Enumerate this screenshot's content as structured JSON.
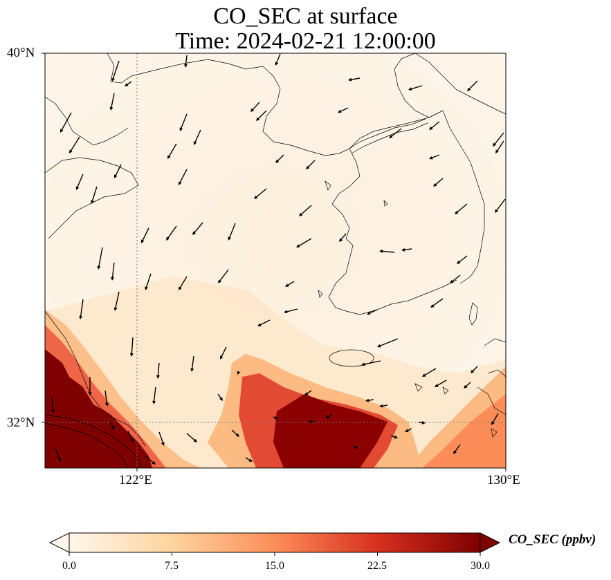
{
  "title": {
    "line1": "CO_SEC at surface",
    "line2": "Time: 2024-02-21 12:00:00"
  },
  "map": {
    "lat_ticks": [
      "40°N",
      "32°N"
    ],
    "lon_ticks": [
      "122°E",
      "130°E"
    ],
    "extent": {
      "lon_min": 120,
      "lon_max": 130,
      "lat_min": 31,
      "lat_max": 40
    },
    "gridlines": {
      "lon": 122,
      "lat": 32,
      "style": "dotted"
    },
    "field_colormap": "OrRd-like (cream to dark red)",
    "high_colors": {
      "low": "#fff7ec",
      "mid": "#fc8d59",
      "high": "#7f0000"
    }
  },
  "colorbar": {
    "label": "CO_SEC (ppbv)",
    "ticks": [
      "0.0",
      "7.5",
      "15.0",
      "22.5",
      "30.0"
    ],
    "range": [
      0,
      30
    ],
    "extend": "both"
  }
}
